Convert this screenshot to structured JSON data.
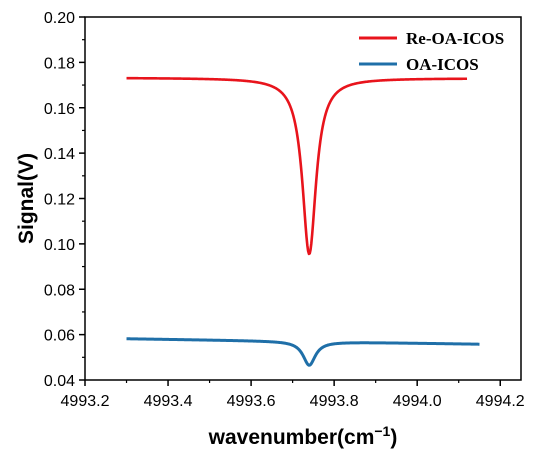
{
  "chart_data": {
    "type": "line",
    "title": "",
    "xlabel": "wavenumber(cm",
    "xlabel_sup": "−1",
    "xlabel_close": ")",
    "ylabel": "Signal(V)",
    "xlim": [
      4993.2,
      4994.25
    ],
    "ylim": [
      0.04,
      0.2
    ],
    "x_ticks": [
      "4993.2",
      "4993.4",
      "4993.6",
      "4993.8",
      "4994.0",
      "4994.2"
    ],
    "y_ticks": [
      "0.04",
      "0.06",
      "0.08",
      "0.10",
      "0.12",
      "0.14",
      "0.16",
      "0.18",
      "0.20"
    ],
    "grid": false,
    "legend_position": "top-right",
    "series": [
      {
        "name": "Re-OA-ICOS",
        "color": "#e8141c",
        "x_range": [
          4993.3,
          4994.12
        ],
        "baseline": [
          0.1732,
          0.173
        ],
        "dip_center": 4993.74,
        "dip_min": 0.0955,
        "dip_hwhm": 0.02,
        "profile": "lorentzian"
      },
      {
        "name": "OA-ICOS",
        "color": "#1f6fa8",
        "x_range": [
          4993.3,
          4994.15
        ],
        "baseline": [
          0.0582,
          0.0558
        ],
        "dip_center": 4993.74,
        "dip_min": 0.0465,
        "dip_hwhm": 0.018,
        "profile": "lorentzian"
      }
    ]
  }
}
